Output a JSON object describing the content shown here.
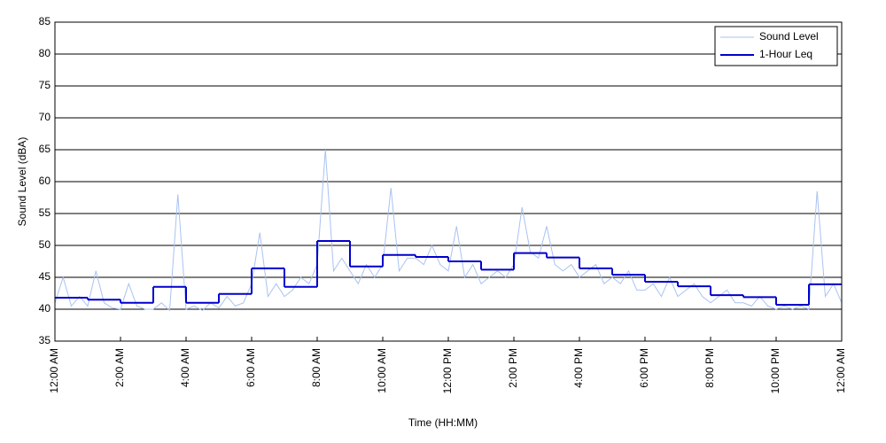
{
  "chart_data": {
    "type": "line",
    "xlabel": "Time (HH:MM)",
    "ylabel": "Sound Level (dBA)",
    "xlim": [
      0,
      24
    ],
    "ylim": [
      35,
      85
    ],
    "yticks": [
      35,
      40,
      45,
      50,
      55,
      60,
      65,
      70,
      75,
      80,
      85
    ],
    "xticks": [
      {
        "value": 0,
        "label": "12:00 AM"
      },
      {
        "value": 2,
        "label": "2:00 AM"
      },
      {
        "value": 4,
        "label": "4:00 AM"
      },
      {
        "value": 6,
        "label": "6:00 AM"
      },
      {
        "value": 8,
        "label": "8:00 AM"
      },
      {
        "value": 10,
        "label": "10:00 AM"
      },
      {
        "value": 12,
        "label": "12:00 PM"
      },
      {
        "value": 14,
        "label": "2:00 PM"
      },
      {
        "value": 16,
        "label": "4:00 PM"
      },
      {
        "value": 18,
        "label": "6:00 PM"
      },
      {
        "value": 20,
        "label": "8:00 PM"
      },
      {
        "value": 22,
        "label": "10:00 PM"
      },
      {
        "value": 24,
        "label": "12:00 AM"
      }
    ],
    "grid": true,
    "legend": "upper right",
    "series": [
      {
        "name": "Sound Level",
        "color": "#a9c2f2",
        "step": false,
        "x": [
          0,
          0.25,
          0.5,
          0.75,
          1,
          1.25,
          1.5,
          1.75,
          2,
          2.25,
          2.5,
          2.75,
          3,
          3.25,
          3.5,
          3.75,
          4,
          4.25,
          4.5,
          4.75,
          5,
          5.25,
          5.5,
          5.75,
          6,
          6.25,
          6.5,
          6.75,
          7,
          7.25,
          7.5,
          7.75,
          8,
          8.25,
          8.5,
          8.75,
          9,
          9.25,
          9.5,
          9.75,
          10,
          10.25,
          10.5,
          10.75,
          11,
          11.25,
          11.5,
          11.75,
          12,
          12.25,
          12.5,
          12.75,
          13,
          13.25,
          13.5,
          13.75,
          14,
          14.25,
          14.5,
          14.75,
          15,
          15.25,
          15.5,
          15.75,
          16,
          16.25,
          16.5,
          16.75,
          17,
          17.25,
          17.5,
          17.75,
          18,
          18.25,
          18.5,
          18.75,
          19,
          19.25,
          19.5,
          19.75,
          20,
          20.25,
          20.5,
          20.75,
          21,
          21.25,
          21.5,
          21.75,
          22,
          22.25,
          22.5,
          22.75,
          23,
          23.25,
          23.5,
          23.75,
          24
        ],
        "values": [
          41,
          45,
          40.5,
          42,
          40.5,
          46,
          41,
          40.2,
          40,
          44,
          40.5,
          40,
          40,
          41,
          39.8,
          58,
          40,
          40.5,
          39.8,
          41,
          40.2,
          42,
          40.5,
          41,
          44,
          52,
          42,
          44,
          42,
          43,
          45,
          44,
          47,
          65,
          46,
          48,
          46,
          44,
          47,
          45,
          47,
          59,
          46,
          48,
          48,
          47,
          50,
          47,
          46,
          53,
          45,
          47,
          44,
          45,
          46,
          45,
          47,
          56,
          49,
          48,
          53,
          47,
          46,
          47,
          45,
          46,
          47,
          44,
          45,
          44,
          46,
          43,
          43,
          44,
          42,
          45,
          42,
          43,
          44,
          42,
          41,
          42,
          43,
          41,
          41,
          40.5,
          42,
          40.5,
          40,
          40.5,
          40,
          40.5,
          40,
          58.5,
          42,
          44,
          41
        ]
      },
      {
        "name": "1-Hour Leq",
        "color": "#0000cc",
        "step": true,
        "x": [
          0,
          1,
          2,
          3,
          4,
          5,
          6,
          7,
          8,
          9,
          10,
          11,
          12,
          13,
          14,
          15,
          16,
          17,
          18,
          19,
          20,
          21,
          22,
          23
        ],
        "values": [
          41.8,
          41.5,
          41.0,
          43.5,
          41.0,
          42.4,
          46.4,
          43.5,
          50.7,
          46.7,
          48.5,
          48.2,
          47.5,
          46.2,
          48.8,
          48.1,
          46.4,
          45.4,
          44.3,
          43.6,
          42.2,
          41.9,
          40.7,
          43.9
        ]
      }
    ]
  }
}
